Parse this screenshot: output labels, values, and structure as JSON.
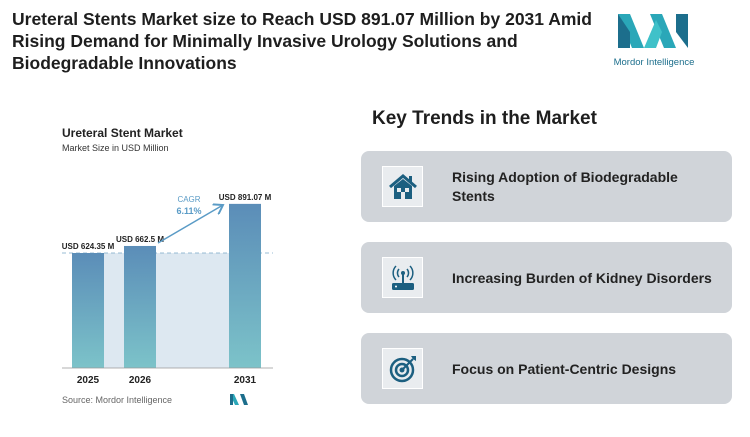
{
  "title": "Ureteral Stents Market size to Reach USD 891.07 Million by 2031 Amid Rising Demand for Minimally Invasive Urology Solutions and Biodegradable Innovations",
  "logo": {
    "text": "Mordor Intelligence"
  },
  "chart_data": {
    "type": "bar",
    "title": "Ureteral Stent Market",
    "subtitle": "Market Size in USD Million",
    "categories": [
      "2025",
      "2026",
      "2031"
    ],
    "values": [
      624.35,
      662.5,
      891.07
    ],
    "data_labels": [
      "USD 624.35 M",
      "USD 662.5 M",
      "USD 891.07 M"
    ],
    "annotation": {
      "label": "CAGR",
      "value": "6.11%"
    },
    "source": "Source: Mordor Intelligence",
    "colors": {
      "bar_top": "#5b8db8",
      "bar_bottom": "#7cc3c9",
      "accent": "#5a9bc6"
    }
  },
  "trends": {
    "heading": "Key Trends in the Market",
    "items": [
      {
        "label": "Rising Adoption of Biodegradable Stents",
        "icon": "house-icon"
      },
      {
        "label": "Increasing Burden of Kidney Disorders",
        "icon": "router-icon"
      },
      {
        "label": "Focus on Patient-Centric Designs",
        "icon": "target-icon"
      }
    ]
  }
}
